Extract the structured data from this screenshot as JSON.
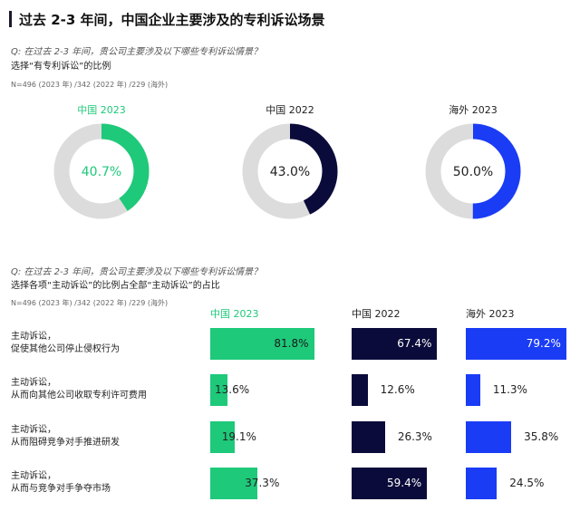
{
  "title": "过去 2-3 年间，中国企业主要涉及的专利诉讼场景",
  "section1": {
    "question": "Q: 在过去 2-3 年间，贵公司主要涉及以下哪些专利诉讼情景？",
    "subtitle": "选择“有专利诉讼”的比例",
    "n_note": "N=496 (2023 年) /342 (2022 年) /229 (海外)"
  },
  "section2": {
    "question": "Q: 在过去 2-3 年间，贵公司主要涉及以下哪些专利诉讼情景？",
    "subtitle": "选择各项“主动诉讼”的比例占全部“主动诉讼”的占比",
    "n_note": "N=496 (2023 年) /342 (2022 年) /229 (海外)"
  },
  "colors": {
    "china2023": "#1ec97a",
    "china2022": "#0b0b3b",
    "overseas2023": "#1a3cf5",
    "ring_bg": "#dcdcdc"
  },
  "chart_data": [
    {
      "type": "pie",
      "subtype": "donut",
      "series": [
        {
          "name": "中国 2023",
          "value": 40.7,
          "label": "40.7%"
        },
        {
          "name": "中国 2022",
          "value": 43.0,
          "label": "43.0%"
        },
        {
          "name": "海外 2023",
          "value": 50.0,
          "label": "50.0%"
        }
      ]
    },
    {
      "type": "bar",
      "orientation": "horizontal",
      "categories": [
        [
          "主动诉讼，",
          "促使其他公司停止侵权行为"
        ],
        [
          "主动诉讼，",
          "从而向其他公司收取专利许可费用"
        ],
        [
          "主动诉讼，",
          "从而阻碍竞争对手推进研发"
        ],
        [
          "主动诉讼，",
          "从而与竞争对手争夺市场"
        ]
      ],
      "xlim": [
        0,
        100
      ],
      "series": [
        {
          "name": "中国 2023",
          "values": [
            81.8,
            13.6,
            19.1,
            37.3
          ],
          "labels": [
            "81.8%",
            "13.6%",
            "19.1%",
            "37.3%"
          ]
        },
        {
          "name": "中国 2022",
          "values": [
            67.4,
            12.6,
            26.3,
            59.4
          ],
          "labels": [
            "67.4%",
            "12.6%",
            "26.3%",
            "59.4%"
          ]
        },
        {
          "name": "海外 2023",
          "values": [
            79.2,
            11.3,
            35.8,
            24.5
          ],
          "labels": [
            "79.2%",
            "11.3%",
            "35.8%",
            "24.5%"
          ]
        }
      ]
    }
  ]
}
